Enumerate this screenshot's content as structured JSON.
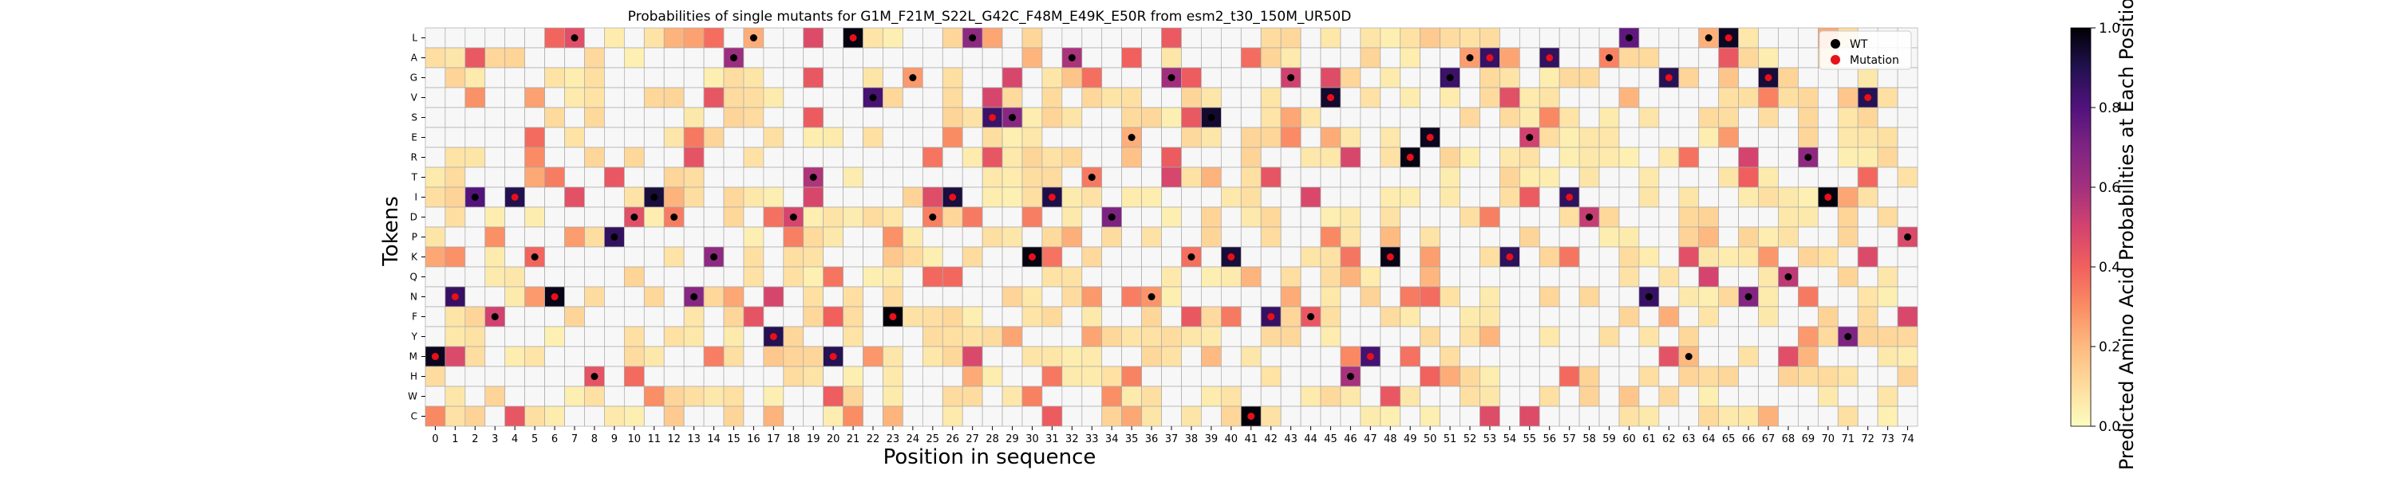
{
  "chart_data": {
    "type": "heatmap",
    "title": "Probabilities of single mutants for G1M_F21M_S22L_G42C_F48M_E49K_E50R from esm2_t30_150M_UR50D",
    "xlabel": "Position in sequence",
    "ylabel": "Tokens",
    "colorbar_label": "Predicted Amino Acid Probabilities at Each Position",
    "colorbar_ticks": [
      "0.0",
      "0.2",
      "0.4",
      "0.6",
      "0.8",
      "1.0"
    ],
    "colorbar_range": [
      0,
      1
    ],
    "colormap": "magma_r",
    "tokens": [
      "L",
      "A",
      "G",
      "V",
      "S",
      "E",
      "R",
      "T",
      "I",
      "D",
      "P",
      "K",
      "Q",
      "N",
      "F",
      "Y",
      "M",
      "H",
      "W",
      "C"
    ],
    "positions": [
      "0",
      "1",
      "2",
      "3",
      "4",
      "5",
      "6",
      "7",
      "8",
      "9",
      "10",
      "11",
      "12",
      "13",
      "14",
      "15",
      "16",
      "17",
      "18",
      "19",
      "20",
      "21",
      "22",
      "23",
      "24",
      "25",
      "26",
      "27",
      "28",
      "29",
      "30",
      "31",
      "32",
      "33",
      "34",
      "35",
      "36",
      "37",
      "38",
      "39",
      "40",
      "41",
      "42",
      "43",
      "44",
      "45",
      "46",
      "47",
      "48",
      "49",
      "50",
      "51",
      "52",
      "53",
      "54",
      "55",
      "56",
      "57",
      "58",
      "59",
      "60",
      "61",
      "62",
      "63",
      "64",
      "65",
      "66",
      "67",
      "68",
      "69",
      "70",
      "71",
      "72",
      "73",
      "74"
    ],
    "legend": {
      "placement": "top-right",
      "items": [
        {
          "label": "WT",
          "color": "#000000"
        },
        {
          "label": "Mutation",
          "color": "#e8101a"
        }
      ]
    },
    "wt_markers": [
      [
        1,
        13
      ],
      [
        2,
        8
      ],
      [
        3,
        14
      ],
      [
        4,
        8
      ],
      [
        5,
        11
      ],
      [
        6,
        13
      ],
      [
        7,
        0
      ],
      [
        8,
        17
      ],
      [
        9,
        10
      ],
      [
        10,
        9
      ],
      [
        11,
        8
      ],
      [
        12,
        9
      ],
      [
        13,
        13
      ],
      [
        14,
        11
      ],
      [
        15,
        1
      ],
      [
        16,
        0
      ],
      [
        17,
        15
      ],
      [
        18,
        9
      ],
      [
        19,
        7
      ],
      [
        22,
        3
      ],
      [
        24,
        2
      ],
      [
        25,
        9
      ],
      [
        26,
        8
      ],
      [
        27,
        0
      ],
      [
        28,
        4
      ],
      [
        29,
        4
      ],
      [
        30,
        11
      ],
      [
        31,
        8
      ],
      [
        32,
        1
      ],
      [
        33,
        7
      ],
      [
        34,
        9
      ],
      [
        35,
        5
      ],
      [
        36,
        13
      ],
      [
        37,
        2
      ],
      [
        38,
        11
      ],
      [
        39,
        4
      ],
      [
        43,
        2
      ],
      [
        44,
        14
      ],
      [
        45,
        3
      ],
      [
        46,
        17
      ],
      [
        51,
        2
      ],
      [
        52,
        1
      ],
      [
        55,
        5
      ],
      [
        56,
        1
      ],
      [
        57,
        8
      ],
      [
        58,
        9
      ],
      [
        59,
        1
      ],
      [
        60,
        0
      ],
      [
        61,
        13
      ],
      [
        62,
        2
      ],
      [
        63,
        16
      ],
      [
        64,
        0
      ],
      [
        65,
        0
      ],
      [
        66,
        13
      ],
      [
        67,
        2
      ],
      [
        68,
        12
      ],
      [
        69,
        6
      ],
      [
        70,
        8
      ],
      [
        71,
        15
      ],
      [
        72,
        3
      ],
      [
        74,
        10
      ]
    ],
    "mutation_markers": [
      [
        0,
        16
      ],
      [
        1,
        13
      ],
      [
        4,
        8
      ],
      [
        6,
        13
      ],
      [
        17,
        15
      ],
      [
        20,
        16
      ],
      [
        21,
        0
      ],
      [
        23,
        14
      ],
      [
        26,
        8
      ],
      [
        28,
        4
      ],
      [
        30,
        11
      ],
      [
        31,
        8
      ],
      [
        40,
        11
      ],
      [
        41,
        19
      ],
      [
        42,
        14
      ],
      [
        45,
        3
      ],
      [
        47,
        16
      ],
      [
        48,
        11
      ],
      [
        49,
        6
      ],
      [
        50,
        5
      ],
      [
        53,
        1
      ],
      [
        54,
        11
      ],
      [
        56,
        1
      ],
      [
        57,
        8
      ],
      [
        62,
        2
      ],
      [
        65,
        0
      ],
      [
        67,
        2
      ],
      [
        70,
        8
      ],
      [
        72,
        3
      ]
    ]
  }
}
